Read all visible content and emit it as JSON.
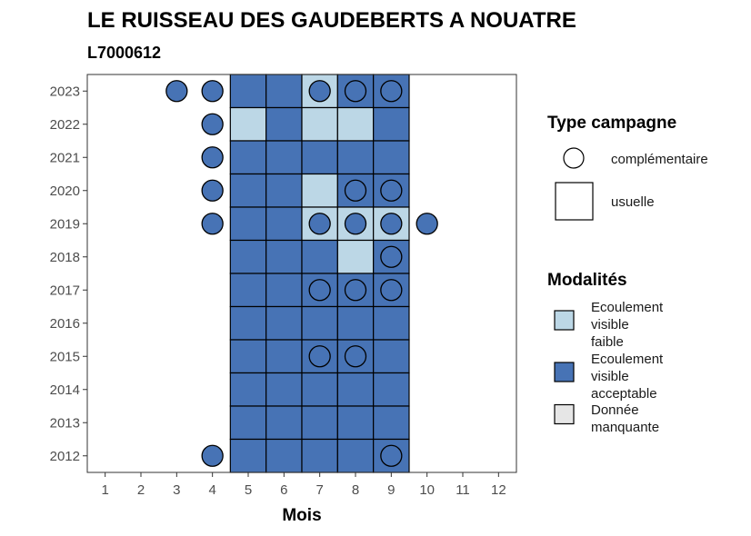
{
  "chart_data": {
    "type": "heatmap",
    "title": "LE RUISSEAU DES GAUDEBERTS A NOUATRE",
    "subtitle": "L7000612",
    "xlabel": "Mois",
    "ylabel": "",
    "x_ticks": [
      1,
      2,
      3,
      4,
      5,
      6,
      7,
      8,
      9,
      10,
      11,
      12
    ],
    "y_ticks": [
      2012,
      2013,
      2014,
      2015,
      2016,
      2017,
      2018,
      2019,
      2020,
      2021,
      2022,
      2023
    ],
    "xlim": [
      0.5,
      12.5
    ],
    "ylim": [
      2011.5,
      2023.5
    ],
    "colors": {
      "faible": "#bcd7e6",
      "acceptable": "#4773b5",
      "manquante": "#e6e6e6"
    },
    "cells": [
      {
        "year": 2023,
        "months": [
          "acceptable",
          "acceptable",
          "faible",
          "acceptable",
          "acceptable"
        ]
      },
      {
        "year": 2022,
        "months": [
          "faible",
          "acceptable",
          "faible",
          "faible",
          "acceptable"
        ]
      },
      {
        "year": 2021,
        "months": [
          "acceptable",
          "acceptable",
          "acceptable",
          "acceptable",
          "acceptable"
        ]
      },
      {
        "year": 2020,
        "months": [
          "acceptable",
          "acceptable",
          "faible",
          "acceptable",
          "acceptable"
        ]
      },
      {
        "year": 2019,
        "months": [
          "acceptable",
          "acceptable",
          "faible",
          "faible",
          "faible"
        ]
      },
      {
        "year": 2018,
        "months": [
          "acceptable",
          "acceptable",
          "acceptable",
          "faible",
          "acceptable"
        ]
      },
      {
        "year": 2017,
        "months": [
          "acceptable",
          "acceptable",
          "acceptable",
          "acceptable",
          "acceptable"
        ]
      },
      {
        "year": 2016,
        "months": [
          "acceptable",
          "acceptable",
          "acceptable",
          "acceptable",
          "acceptable"
        ]
      },
      {
        "year": 2015,
        "months": [
          "acceptable",
          "acceptable",
          "acceptable",
          "acceptable",
          "acceptable"
        ]
      },
      {
        "year": 2014,
        "months": [
          "acceptable",
          "acceptable",
          "acceptable",
          "acceptable",
          "acceptable"
        ]
      },
      {
        "year": 2013,
        "months": [
          "acceptable",
          "acceptable",
          "acceptable",
          "acceptable",
          "acceptable"
        ]
      },
      {
        "year": 2012,
        "months": [
          "acceptable",
          "acceptable",
          "acceptable",
          "acceptable",
          "acceptable"
        ]
      }
    ],
    "usuelle_months": [
      5,
      6,
      7,
      8,
      9
    ],
    "complementaire_points": [
      {
        "year": 2023,
        "month": 3,
        "modalite": "acceptable"
      },
      {
        "year": 2023,
        "month": 4,
        "modalite": "acceptable"
      },
      {
        "year": 2023,
        "month": 7,
        "modalite": "acceptable"
      },
      {
        "year": 2023,
        "month": 8,
        "modalite": "acceptable"
      },
      {
        "year": 2023,
        "month": 9,
        "modalite": "acceptable"
      },
      {
        "year": 2022,
        "month": 4,
        "modalite": "acceptable"
      },
      {
        "year": 2021,
        "month": 4,
        "modalite": "acceptable"
      },
      {
        "year": 2020,
        "month": 4,
        "modalite": "acceptable"
      },
      {
        "year": 2020,
        "month": 8,
        "modalite": "acceptable"
      },
      {
        "year": 2020,
        "month": 9,
        "modalite": "acceptable"
      },
      {
        "year": 2019,
        "month": 4,
        "modalite": "acceptable"
      },
      {
        "year": 2019,
        "month": 7,
        "modalite": "acceptable"
      },
      {
        "year": 2019,
        "month": 8,
        "modalite": "acceptable"
      },
      {
        "year": 2019,
        "month": 9,
        "modalite": "acceptable"
      },
      {
        "year": 2019,
        "month": 10,
        "modalite": "acceptable"
      },
      {
        "year": 2018,
        "month": 9,
        "modalite": "acceptable"
      },
      {
        "year": 2017,
        "month": 7,
        "modalite": "acceptable"
      },
      {
        "year": 2017,
        "month": 8,
        "modalite": "acceptable"
      },
      {
        "year": 2017,
        "month": 9,
        "modalite": "acceptable"
      },
      {
        "year": 2015,
        "month": 7,
        "modalite": "acceptable"
      },
      {
        "year": 2015,
        "month": 8,
        "modalite": "acceptable"
      },
      {
        "year": 2012,
        "month": 4,
        "modalite": "acceptable"
      },
      {
        "year": 2012,
        "month": 9,
        "modalite": "acceptable"
      }
    ],
    "legend": {
      "placement": "right",
      "type_title": "Type campagne",
      "type_entries": [
        {
          "shape": "circle",
          "label": "complémentaire"
        },
        {
          "shape": "square",
          "label": "usuelle"
        }
      ],
      "modalite_title": "Modalités",
      "modalite_entries": [
        {
          "key": "faible",
          "lines": [
            "Ecoulement",
            "visible",
            "faible"
          ]
        },
        {
          "key": "acceptable",
          "lines": [
            "Ecoulement",
            "visible",
            "acceptable"
          ]
        },
        {
          "key": "manquante",
          "lines": [
            "Donnée",
            "manquante"
          ]
        }
      ]
    }
  }
}
